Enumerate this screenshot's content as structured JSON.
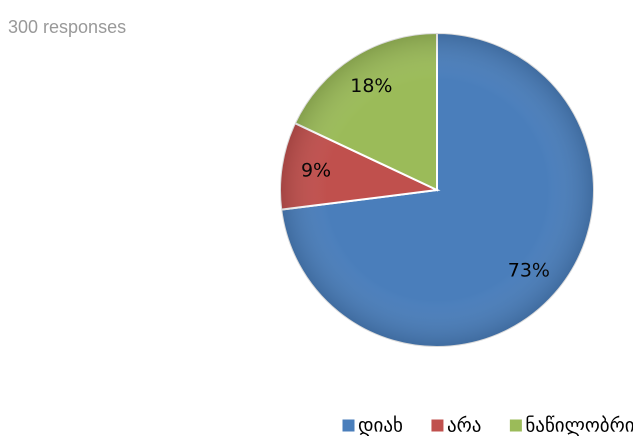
{
  "chart_data": {
    "type": "pie",
    "subtitle": "300 responses",
    "categories": [
      "დიახ",
      "არა",
      "ნაწილობრივ"
    ],
    "values": [
      73,
      9,
      18
    ],
    "value_labels": [
      "73%",
      "9%",
      "18%"
    ],
    "colors": [
      "#4a7ebb",
      "#c0504d",
      "#9bbb59"
    ],
    "legend": "bottom"
  }
}
